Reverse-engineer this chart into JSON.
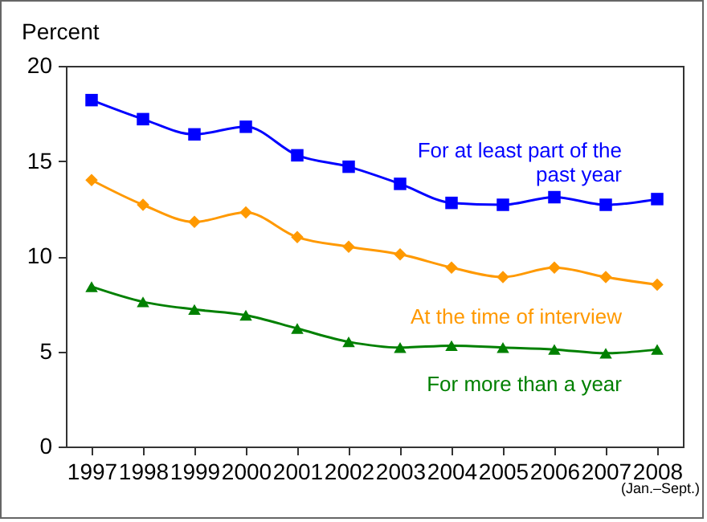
{
  "chart_data": {
    "type": "line",
    "ylabel": "Percent",
    "categories": [
      "1997",
      "1998",
      "1999",
      "2000",
      "2001",
      "2002",
      "2003",
      "2004",
      "2005",
      "2006",
      "2007",
      "2008"
    ],
    "series": [
      {
        "name": "For at least part of the past year",
        "color": "#0000ff",
        "marker": "square",
        "values": [
          18.2,
          17.2,
          16.4,
          16.8,
          15.3,
          14.7,
          13.8,
          12.8,
          12.7,
          13.1,
          12.7,
          13.0
        ]
      },
      {
        "name": "At the time of interview",
        "color": "#ff9900",
        "marker": "diamond",
        "values": [
          14.0,
          12.7,
          11.8,
          12.3,
          11.0,
          10.5,
          10.1,
          9.4,
          8.9,
          9.4,
          8.9,
          8.5
        ]
      },
      {
        "name": "For more than a year",
        "color": "#008000",
        "marker": "triangle",
        "values": [
          8.4,
          7.6,
          7.2,
          6.9,
          6.2,
          5.5,
          5.2,
          5.3,
          5.2,
          5.1,
          4.9,
          5.1
        ]
      }
    ],
    "ylim": [
      0,
      20
    ],
    "yticks": [
      0,
      5,
      10,
      15,
      20
    ],
    "grid": false,
    "legend": false,
    "annotations": [
      "(Jan.–Sept.)"
    ]
  }
}
